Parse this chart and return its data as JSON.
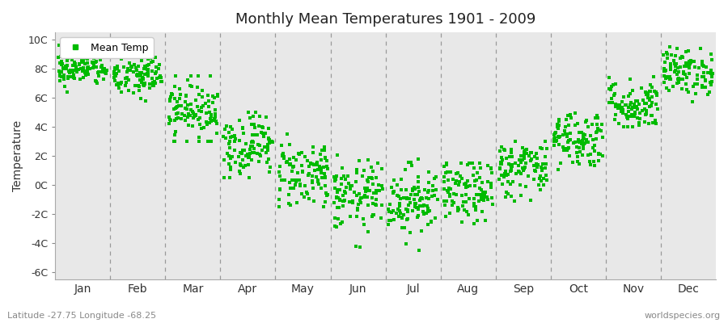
{
  "title": "Monthly Mean Temperatures 1901 - 2009",
  "ylabel": "Temperature",
  "xlabel_labels": [
    "Jan",
    "Feb",
    "Mar",
    "Apr",
    "May",
    "Jun",
    "Jul",
    "Aug",
    "Sep",
    "Oct",
    "Nov",
    "Dec"
  ],
  "subtitle": "Latitude -27.75 Longitude -68.25",
  "watermark": "worldspecies.org",
  "ytick_labels": [
    "10C",
    "8C",
    "6C",
    "4C",
    "2C",
    "0C",
    "-2C",
    "-4C",
    "-6C"
  ],
  "ytick_values": [
    10,
    8,
    6,
    4,
    2,
    0,
    -2,
    -4,
    -6
  ],
  "ylim": [
    -6.5,
    10.5
  ],
  "dot_color": "#00bb00",
  "dot_size": 5,
  "legend_label": "Mean Temp",
  "background_color": "#e8e8e8",
  "monthly_means": [
    8.0,
    7.5,
    5.2,
    2.8,
    0.8,
    -0.8,
    -1.0,
    -0.5,
    1.2,
    3.2,
    5.5,
    7.8
  ],
  "monthly_stds": [
    0.6,
    0.8,
    1.0,
    1.1,
    1.2,
    1.2,
    1.2,
    1.1,
    1.0,
    1.0,
    0.9,
    0.8
  ],
  "monthly_mins": [
    6.2,
    5.5,
    3.0,
    0.5,
    -1.5,
    -4.8,
    -5.2,
    -3.5,
    -1.5,
    0.8,
    4.0,
    5.5
  ],
  "monthly_maxs": [
    9.8,
    9.5,
    7.5,
    5.0,
    3.5,
    2.2,
    1.8,
    1.5,
    3.5,
    5.5,
    8.0,
    9.8
  ],
  "n_years": 109,
  "seed": 42,
  "dashed_line_color": "#999999",
  "spine_color": "#aaaaaa"
}
